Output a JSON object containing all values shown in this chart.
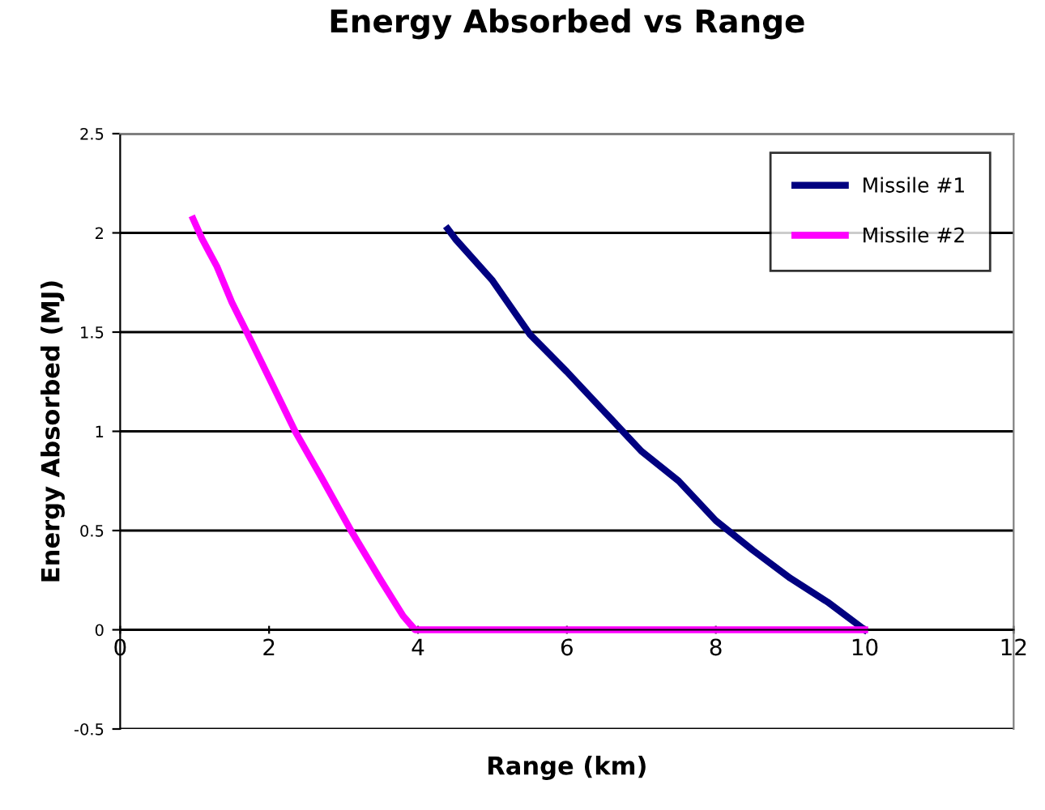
{
  "chart_data": {
    "type": "line",
    "title": "Energy Absorbed vs Range",
    "xlabel": "Range (km)",
    "ylabel": "Energy Absorbed (MJ)",
    "series": [
      {
        "name": "Missile #1",
        "color": "#000080",
        "x": [
          4.4,
          4.5,
          5.0,
          5.5,
          6.0,
          6.5,
          7.0,
          7.5,
          8.0,
          8.5,
          9.0,
          9.5,
          10.0
        ],
        "values": [
          2.02,
          1.97,
          1.76,
          1.49,
          1.3,
          1.1,
          0.9,
          0.75,
          0.55,
          0.4,
          0.26,
          0.14,
          0.0
        ]
      },
      {
        "name": "Missile #2",
        "color": "#ff00ff",
        "x": [
          0.98,
          1.1,
          1.3,
          1.5,
          1.7,
          2.0,
          2.35,
          2.7,
          3.1,
          3.5,
          3.8,
          3.96,
          6.0,
          8.0,
          10.0
        ],
        "values": [
          2.07,
          1.97,
          1.83,
          1.65,
          1.5,
          1.27,
          1.0,
          0.77,
          0.5,
          0.25,
          0.07,
          0.0,
          0.0,
          0.0,
          0.0
        ]
      }
    ],
    "xlim": [
      0,
      12
    ],
    "xticks": [
      0,
      2,
      4,
      6,
      8,
      10,
      12
    ],
    "ylim": [
      -0.5,
      2.5
    ],
    "yticks": [
      -0.5,
      0,
      0.5,
      1,
      1.5,
      2,
      2.5
    ],
    "grid": "y",
    "legend": "top right",
    "marker": "none",
    "line_style": "solid"
  }
}
